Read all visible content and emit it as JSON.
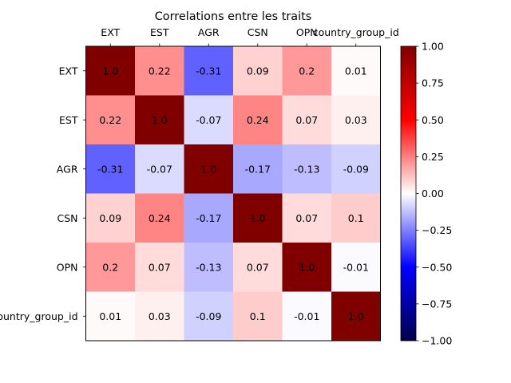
{
  "chart_data": {
    "type": "heatmap",
    "title": "Correlations entre les traits",
    "x_labels": [
      "EXT",
      "EST",
      "AGR",
      "CSN",
      "OPN",
      "country_group_id"
    ],
    "y_labels": [
      "EXT",
      "EST",
      "AGR",
      "CSN",
      "OPN",
      "country_group_id"
    ],
    "values": [
      [
        "1.0",
        "0.22",
        "-0.31",
        "0.09",
        "0.2",
        "0.01"
      ],
      [
        "0.22",
        "1.0",
        "-0.07",
        "0.24",
        "0.07",
        "0.03"
      ],
      [
        "-0.31",
        "-0.07",
        "1.0",
        "-0.17",
        "-0.13",
        "-0.09"
      ],
      [
        "0.09",
        "0.24",
        "-0.17",
        "1.0",
        "0.07",
        "0.1"
      ],
      [
        "0.2",
        "0.07",
        "-0.13",
        "0.07",
        "1.0",
        "-0.01"
      ],
      [
        "0.01",
        "0.03",
        "-0.09",
        "0.1",
        "-0.01",
        "1.0"
      ]
    ],
    "colorbar": {
      "range": [
        -1.0,
        1.0
      ],
      "ticks": [
        "1.00",
        "0.75",
        "0.50",
        "0.25",
        "0.00",
        "−0.25",
        "−0.50",
        "−0.75",
        "−1.00"
      ],
      "colormap": "seismic"
    },
    "xaxis_position": "top"
  }
}
